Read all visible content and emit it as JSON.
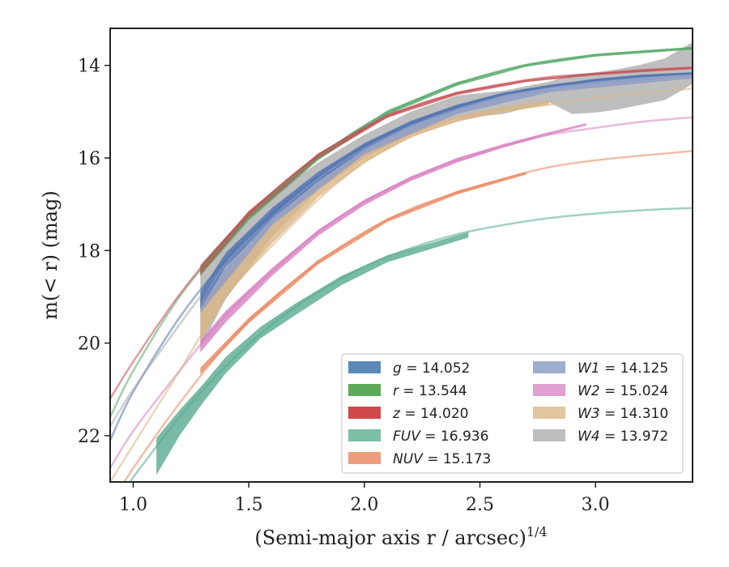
{
  "chart_data": {
    "type": "line",
    "xlabel": "(Semi-major axis r / arcsec)",
    "xlabel_exponent": "1/4",
    "ylabel": "m(< r) (mag)",
    "xlim": [
      0.9,
      3.42
    ],
    "ylim": [
      23.0,
      13.2
    ],
    "y_inverted": true,
    "grid": false,
    "legend_placement": "lower-right",
    "xticks": [
      {
        "v": 1.0,
        "label": "1.0"
      },
      {
        "v": 1.5,
        "label": "1.5"
      },
      {
        "v": 2.0,
        "label": "2.0"
      },
      {
        "v": 2.5,
        "label": "2.5"
      },
      {
        "v": 3.0,
        "label": "3.0"
      }
    ],
    "yticks": [
      {
        "v": 14,
        "label": "14"
      },
      {
        "v": 16,
        "label": "16"
      },
      {
        "v": 18,
        "label": "18"
      },
      {
        "v": 20,
        "label": "20"
      },
      {
        "v": 22,
        "label": "22"
      }
    ],
    "series": [
      {
        "band": "g",
        "value": "14.052",
        "color": "#4c72b0",
        "legend_color": "#5b8ab8",
        "model": [
          [
            0.9,
            22.1
          ],
          [
            1.0,
            21.05
          ],
          [
            1.2,
            19.45
          ],
          [
            1.4,
            18.2
          ],
          [
            1.6,
            17.2
          ],
          [
            1.8,
            16.4
          ],
          [
            2.0,
            15.75
          ],
          [
            2.2,
            15.25
          ],
          [
            2.4,
            14.9
          ],
          [
            2.6,
            14.62
          ],
          [
            2.8,
            14.45
          ],
          [
            3.0,
            14.32
          ],
          [
            3.2,
            14.23
          ],
          [
            3.42,
            14.17
          ]
        ],
        "band_low": [
          [
            1.29,
            19.25
          ],
          [
            1.4,
            18.35
          ],
          [
            1.6,
            17.32
          ],
          [
            1.8,
            16.5
          ],
          [
            2.0,
            15.82
          ],
          [
            2.2,
            15.3
          ],
          [
            2.4,
            14.95
          ],
          [
            2.6,
            14.65
          ],
          [
            2.8,
            14.48
          ],
          [
            3.0,
            14.35
          ],
          [
            3.2,
            14.26
          ],
          [
            3.42,
            14.19
          ]
        ],
        "band_high": [
          [
            1.29,
            18.9
          ],
          [
            1.4,
            18.05
          ],
          [
            1.6,
            17.08
          ],
          [
            1.8,
            16.3
          ],
          [
            2.0,
            15.68
          ],
          [
            2.2,
            15.2
          ],
          [
            2.4,
            14.85
          ],
          [
            2.6,
            14.59
          ],
          [
            2.8,
            14.42
          ],
          [
            3.0,
            14.29
          ],
          [
            3.2,
            14.2
          ],
          [
            3.42,
            14.15
          ]
        ]
      },
      {
        "band": "r",
        "value": "13.544",
        "color": "#55a868",
        "legend_color": "#5aaa5a",
        "model": [
          [
            0.9,
            21.6
          ],
          [
            1.0,
            20.6
          ],
          [
            1.2,
            19.0
          ],
          [
            1.4,
            17.8
          ],
          [
            1.6,
            16.8
          ],
          [
            1.8,
            16.0
          ],
          [
            2.0,
            15.3
          ],
          [
            2.2,
            14.8
          ],
          [
            2.4,
            14.4
          ],
          [
            2.6,
            14.1
          ],
          [
            2.8,
            13.9
          ],
          [
            3.0,
            13.78
          ],
          [
            3.2,
            13.7
          ],
          [
            3.42,
            13.63
          ]
        ],
        "band_low": [
          [
            1.29,
            18.55
          ],
          [
            1.5,
            17.35
          ],
          [
            1.8,
            16.05
          ],
          [
            2.1,
            15.07
          ],
          [
            2.4,
            14.44
          ],
          [
            2.7,
            14.03
          ],
          [
            3.0,
            13.81
          ],
          [
            3.42,
            13.66
          ]
        ],
        "band_high": [
          [
            1.29,
            18.35
          ],
          [
            1.5,
            17.17
          ],
          [
            1.8,
            15.92
          ],
          [
            2.1,
            14.97
          ],
          [
            2.4,
            14.36
          ],
          [
            2.7,
            13.97
          ],
          [
            3.0,
            13.75
          ],
          [
            3.42,
            13.6
          ]
        ]
      },
      {
        "band": "z",
        "value": "14.020",
        "color": "#c44e52",
        "legend_color": "#d04848",
        "model": [
          [
            0.9,
            21.2
          ],
          [
            1.0,
            20.4
          ],
          [
            1.2,
            18.95
          ],
          [
            1.4,
            17.75
          ],
          [
            1.6,
            16.75
          ],
          [
            1.8,
            15.95
          ],
          [
            2.0,
            15.35
          ],
          [
            2.2,
            14.9
          ],
          [
            2.4,
            14.6
          ],
          [
            2.6,
            14.4
          ],
          [
            2.8,
            14.25
          ],
          [
            3.0,
            14.18
          ],
          [
            3.2,
            14.1
          ],
          [
            3.42,
            14.05
          ]
        ],
        "band_low": [
          [
            1.29,
            18.52
          ],
          [
            1.5,
            17.3
          ],
          [
            1.8,
            16.02
          ],
          [
            2.1,
            15.13
          ],
          [
            2.4,
            14.64
          ],
          [
            2.7,
            14.36
          ],
          [
            3.0,
            14.21
          ],
          [
            3.42,
            14.08
          ]
        ],
        "band_high": [
          [
            1.29,
            18.34
          ],
          [
            1.5,
            17.14
          ],
          [
            1.8,
            15.9
          ],
          [
            2.1,
            15.05
          ],
          [
            2.4,
            14.57
          ],
          [
            2.7,
            14.31
          ],
          [
            3.0,
            14.16
          ],
          [
            3.42,
            14.03
          ]
        ]
      },
      {
        "band": "FUV",
        "value": "16.936",
        "color": "#58aa90",
        "legend_color": "#7bbfa5",
        "model": [
          [
            0.9,
            23.6
          ],
          [
            1.0,
            22.9
          ],
          [
            1.2,
            21.6
          ],
          [
            1.4,
            20.5
          ],
          [
            1.6,
            19.6
          ],
          [
            1.8,
            18.9
          ],
          [
            2.0,
            18.35
          ],
          [
            2.2,
            17.95
          ],
          [
            2.4,
            17.65
          ],
          [
            2.6,
            17.45
          ],
          [
            2.8,
            17.3
          ],
          [
            3.0,
            17.2
          ],
          [
            3.2,
            17.13
          ],
          [
            3.42,
            17.08
          ]
        ],
        "band_low": [
          [
            1.1,
            22.85
          ],
          [
            1.2,
            22.0
          ],
          [
            1.3,
            21.3
          ],
          [
            1.4,
            20.65
          ],
          [
            1.55,
            19.9
          ],
          [
            1.7,
            19.4
          ],
          [
            1.9,
            18.75
          ],
          [
            2.1,
            18.25
          ],
          [
            2.3,
            17.95
          ],
          [
            2.45,
            17.72
          ]
        ],
        "band_high": [
          [
            1.1,
            22.05
          ],
          [
            1.2,
            21.45
          ],
          [
            1.3,
            20.9
          ],
          [
            1.4,
            20.3
          ],
          [
            1.55,
            19.65
          ],
          [
            1.7,
            19.15
          ],
          [
            1.9,
            18.55
          ],
          [
            2.1,
            18.1
          ],
          [
            2.3,
            17.82
          ],
          [
            2.45,
            17.6
          ]
        ]
      },
      {
        "band": "NUV",
        "value": "15.173",
        "color": "#e8875f",
        "legend_color": "#eb9d7c",
        "model": [
          [
            0.9,
            23.5
          ],
          [
            1.0,
            22.7
          ],
          [
            1.2,
            21.3
          ],
          [
            1.4,
            20.05
          ],
          [
            1.6,
            19.05
          ],
          [
            1.8,
            18.25
          ],
          [
            2.0,
            17.6
          ],
          [
            2.2,
            17.1
          ],
          [
            2.4,
            16.75
          ],
          [
            2.6,
            16.45
          ],
          [
            2.8,
            16.2
          ],
          [
            3.0,
            16.05
          ],
          [
            3.2,
            15.95
          ],
          [
            3.42,
            15.85
          ]
        ],
        "band_low": [
          [
            1.29,
            20.67
          ],
          [
            1.5,
            19.57
          ],
          [
            1.8,
            18.3
          ],
          [
            2.1,
            17.38
          ],
          [
            2.4,
            16.79
          ],
          [
            2.7,
            16.36
          ]
        ],
        "band_high": [
          [
            1.29,
            20.53
          ],
          [
            1.5,
            19.45
          ],
          [
            1.8,
            18.2
          ],
          [
            2.1,
            17.3
          ],
          [
            2.4,
            16.71
          ],
          [
            2.7,
            16.3
          ]
        ]
      },
      {
        "band": "W1",
        "value": "14.125",
        "color": "#8d9cc7",
        "legend_color": "#9fadd0",
        "model": [
          [
            1.29,
            19.2
          ],
          [
            1.4,
            18.3
          ],
          [
            1.6,
            17.3
          ],
          [
            1.8,
            16.45
          ],
          [
            2.0,
            15.8
          ],
          [
            2.2,
            15.32
          ],
          [
            2.4,
            14.95
          ],
          [
            2.6,
            14.68
          ],
          [
            2.8,
            14.5
          ],
          [
            3.0,
            14.38
          ],
          [
            3.2,
            14.3
          ],
          [
            3.42,
            14.22
          ]
        ],
        "band_low": [
          [
            1.29,
            19.35
          ],
          [
            1.6,
            17.45
          ],
          [
            2.0,
            15.92
          ],
          [
            2.4,
            15.05
          ],
          [
            2.8,
            14.58
          ],
          [
            3.42,
            14.28
          ]
        ],
        "band_high": [
          [
            1.29,
            19.05
          ],
          [
            1.6,
            17.15
          ],
          [
            2.0,
            15.68
          ],
          [
            2.4,
            14.86
          ],
          [
            2.8,
            14.43
          ],
          [
            3.42,
            14.16
          ]
        ]
      },
      {
        "band": "W2",
        "value": "15.024",
        "color": "#d77fc0",
        "legend_color": "#e0a0d0",
        "model": [
          [
            0.9,
            22.7
          ],
          [
            1.0,
            21.9
          ],
          [
            1.2,
            20.6
          ],
          [
            1.4,
            19.4
          ],
          [
            1.6,
            18.45
          ],
          [
            1.8,
            17.6
          ],
          [
            2.0,
            16.95
          ],
          [
            2.2,
            16.45
          ],
          [
            2.4,
            16.05
          ],
          [
            2.6,
            15.75
          ],
          [
            2.8,
            15.5
          ],
          [
            3.0,
            15.35
          ],
          [
            3.2,
            15.22
          ],
          [
            3.42,
            15.12
          ]
        ],
        "band_low": [
          [
            1.29,
            20.2
          ],
          [
            1.4,
            19.55
          ],
          [
            1.6,
            18.55
          ],
          [
            1.8,
            17.68
          ],
          [
            2.0,
            17.02
          ],
          [
            2.2,
            16.5
          ],
          [
            2.4,
            16.1
          ],
          [
            2.6,
            15.78
          ],
          [
            2.8,
            15.5
          ],
          [
            2.96,
            15.3
          ]
        ],
        "band_high": [
          [
            1.29,
            19.95
          ],
          [
            1.4,
            19.3
          ],
          [
            1.6,
            18.38
          ],
          [
            1.8,
            17.55
          ],
          [
            2.0,
            16.9
          ],
          [
            2.2,
            16.4
          ],
          [
            2.4,
            16.0
          ],
          [
            2.6,
            15.7
          ],
          [
            2.8,
            15.44
          ],
          [
            2.96,
            15.25
          ]
        ]
      },
      {
        "band": "W3",
        "value": "14.310",
        "color": "#dbb585",
        "legend_color": "#e2c69f",
        "model": [
          [
            0.9,
            23.0
          ],
          [
            1.0,
            22.2
          ],
          [
            1.2,
            20.6
          ],
          [
            1.4,
            19.0
          ],
          [
            1.6,
            17.9
          ],
          [
            1.8,
            16.9
          ],
          [
            2.0,
            16.1
          ],
          [
            2.2,
            15.55
          ],
          [
            2.4,
            15.2
          ],
          [
            2.6,
            15.0
          ],
          [
            2.8,
            14.85
          ],
          [
            3.0,
            14.7
          ],
          [
            3.2,
            14.6
          ],
          [
            3.42,
            14.5
          ]
        ],
        "band_low": [
          [
            1.29,
            19.95
          ],
          [
            1.4,
            19.0
          ],
          [
            1.6,
            17.85
          ],
          [
            1.8,
            16.85
          ],
          [
            2.0,
            16.1
          ],
          [
            2.2,
            15.55
          ],
          [
            2.4,
            15.22
          ],
          [
            2.6,
            15.0
          ],
          [
            2.8,
            14.85
          ]
        ],
        "band_high": [
          [
            1.29,
            19.2
          ],
          [
            1.4,
            18.5
          ],
          [
            1.6,
            17.45
          ],
          [
            1.8,
            16.55
          ],
          [
            2.0,
            15.88
          ],
          [
            2.2,
            15.4
          ],
          [
            2.4,
            15.1
          ],
          [
            2.6,
            14.9
          ],
          [
            2.8,
            14.75
          ]
        ]
      },
      {
        "band": "W4",
        "value": "13.972",
        "color": "#a8a8a8",
        "legend_color": "#bdbdbd",
        "model": [
          [
            0.9,
            21.8
          ],
          [
            1.0,
            21.0
          ],
          [
            1.2,
            19.6
          ],
          [
            1.29,
            19.0
          ]
        ],
        "band_low": [
          [
            1.29,
            20.1
          ],
          [
            1.4,
            19.05
          ],
          [
            1.6,
            17.7
          ],
          [
            1.8,
            16.7
          ],
          [
            2.0,
            16.0
          ],
          [
            2.2,
            15.5
          ],
          [
            2.4,
            15.15
          ],
          [
            2.6,
            15.05
          ],
          [
            2.8,
            14.8
          ],
          [
            2.9,
            15.05
          ],
          [
            3.0,
            15.02
          ],
          [
            3.1,
            14.95
          ],
          [
            3.2,
            14.85
          ],
          [
            3.3,
            14.75
          ],
          [
            3.42,
            14.4
          ]
        ],
        "band_high": [
          [
            1.29,
            18.3
          ],
          [
            1.4,
            17.7
          ],
          [
            1.6,
            16.8
          ],
          [
            1.8,
            16.1
          ],
          [
            2.0,
            15.5
          ],
          [
            2.2,
            15.0
          ],
          [
            2.4,
            14.65
          ],
          [
            2.6,
            14.55
          ],
          [
            2.8,
            14.35
          ],
          [
            2.9,
            14.2
          ],
          [
            3.0,
            14.15
          ],
          [
            3.1,
            14.08
          ],
          [
            3.2,
            13.98
          ],
          [
            3.3,
            13.85
          ],
          [
            3.42,
            13.5
          ]
        ]
      }
    ]
  }
}
